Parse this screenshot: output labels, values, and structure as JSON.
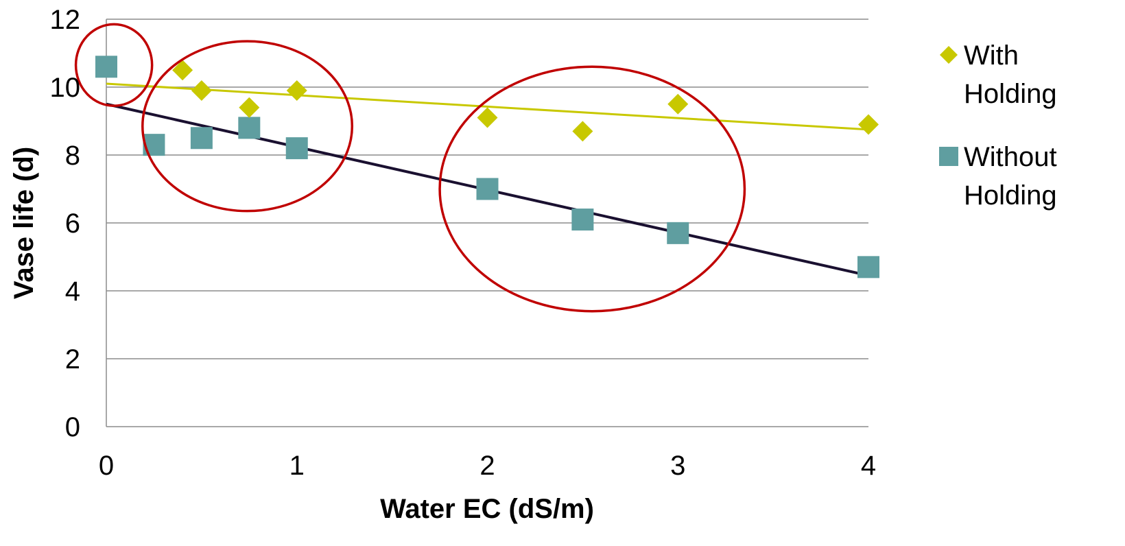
{
  "chart_data": {
    "type": "scatter",
    "title": "",
    "xlabel": "Water EC (dS/m)",
    "ylabel": "Vase life (d)",
    "xlim": [
      0,
      4
    ],
    "ylim": [
      0,
      12
    ],
    "x_ticks": [
      "0",
      "1",
      "2",
      "3",
      "4"
    ],
    "y_ticks": [
      "0",
      "2",
      "4",
      "6",
      "8",
      "10",
      "12"
    ],
    "grid": "horizontal",
    "legend_position": "right",
    "series": [
      {
        "name": "With Holding",
        "legend_lines": [
          "With",
          "Holding"
        ],
        "marker": "diamond",
        "color": "#c8c800",
        "points": [
          {
            "x": 0.4,
            "y": 10.5
          },
          {
            "x": 0.5,
            "y": 9.9
          },
          {
            "x": 0.75,
            "y": 9.4
          },
          {
            "x": 1.0,
            "y": 9.9
          },
          {
            "x": 2.0,
            "y": 9.1
          },
          {
            "x": 2.5,
            "y": 8.7
          },
          {
            "x": 3.0,
            "y": 9.5
          },
          {
            "x": 4.0,
            "y": 8.9
          }
        ],
        "trendline": {
          "x": [
            0,
            4
          ],
          "y": [
            10.1,
            8.75
          ],
          "color": "#c8c800"
        }
      },
      {
        "name": "Without Holding",
        "legend_lines": [
          "Without",
          "Holding"
        ],
        "marker": "square",
        "color": "#5f9ea0",
        "points": [
          {
            "x": 0.0,
            "y": 10.6
          },
          {
            "x": 0.25,
            "y": 8.3
          },
          {
            "x": 0.5,
            "y": 8.5
          },
          {
            "x": 0.75,
            "y": 8.8
          },
          {
            "x": 1.0,
            "y": 8.2
          },
          {
            "x": 2.0,
            "y": 7.0
          },
          {
            "x": 2.5,
            "y": 6.1
          },
          {
            "x": 3.0,
            "y": 5.7
          },
          {
            "x": 4.0,
            "y": 4.7
          }
        ],
        "trendline": {
          "x": [
            0,
            4
          ],
          "y": [
            9.5,
            4.45
          ],
          "color": "#1a1030"
        }
      }
    ],
    "annotations": [
      {
        "type": "ellipse",
        "center": {
          "x": 0.04,
          "y": 10.65
        },
        "radius_x": 0.2,
        "radius_y": 1.2,
        "color": "#c00000"
      },
      {
        "type": "ellipse",
        "center": {
          "x": 0.74,
          "y": 8.85
        },
        "radius_x": 0.55,
        "radius_y": 2.5,
        "color": "#c00000"
      },
      {
        "type": "ellipse",
        "center": {
          "x": 2.55,
          "y": 7.0
        },
        "radius_x": 0.8,
        "radius_y": 3.6,
        "color": "#c00000"
      }
    ]
  }
}
